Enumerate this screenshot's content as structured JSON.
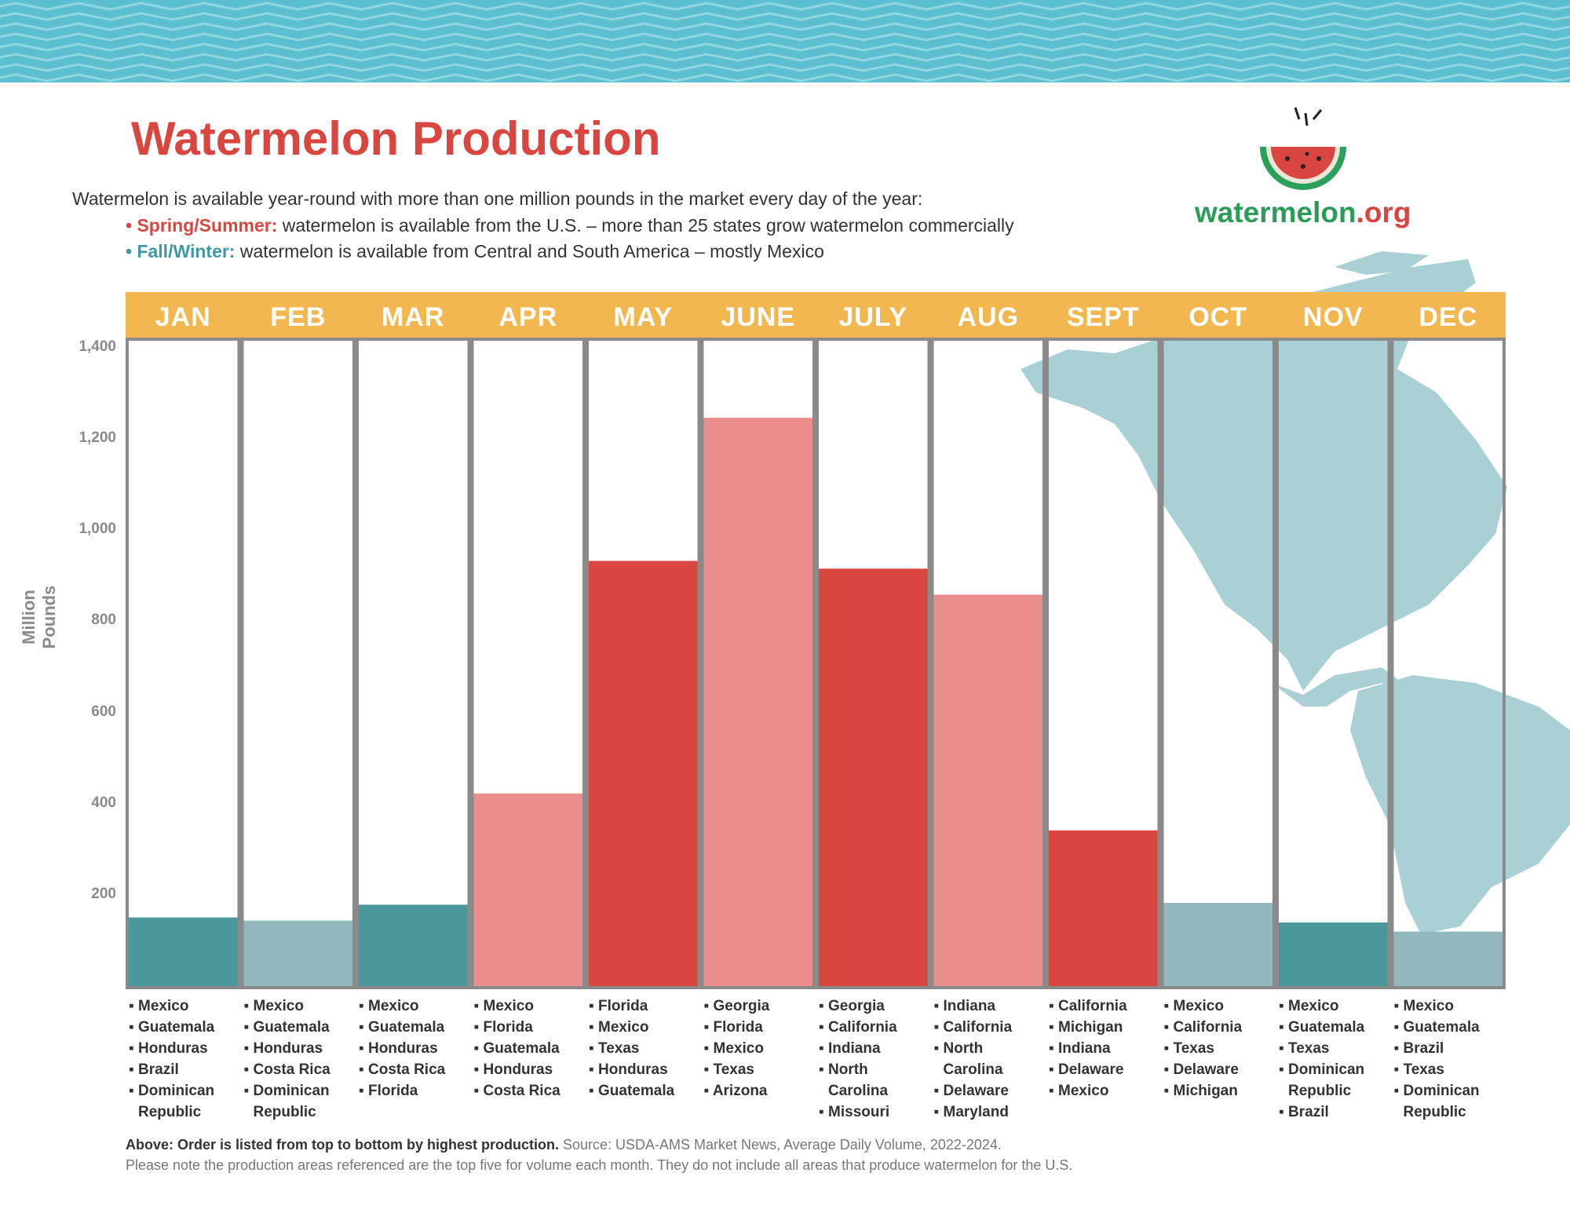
{
  "title": "Watermelon Production",
  "intro": "Watermelon is available year-round with more than one million pounds in the market every day of the year:",
  "bullets": [
    {
      "label": "Spring/Summer:",
      "text": " watermelon is available from the U.S. – more than 25 states grow watermelon commercially",
      "color": "#d9453f"
    },
    {
      "label": "Fall/Winter:",
      "text": " watermelon is available from Central and South America – mostly Mexico",
      "color": "#3d9aa3"
    }
  ],
  "logo": {
    "text_main": "watermelon",
    "text_suffix": ".org"
  },
  "colors": {
    "header": "#f2b84f",
    "dark_teal": "#4a979c",
    "light_teal": "#93b8be",
    "red": "#d9453f",
    "pink": "#e98e8b",
    "border": "#8a8a8a",
    "map": "#a9d0d4"
  },
  "chart_data": {
    "type": "bar",
    "ylabel": "Million Pounds",
    "ylim": [
      0,
      1400
    ],
    "yticks": [
      "200",
      "400",
      "600",
      "800",
      "1,000",
      "1,200",
      "1,400"
    ],
    "ytick_values": [
      200,
      400,
      600,
      800,
      1000,
      1200,
      1400
    ],
    "categories": [
      "JAN",
      "FEB",
      "MAR",
      "APR",
      "MAY",
      "JUNE",
      "JULY",
      "AUG",
      "SEPT",
      "OCT",
      "NOV",
      "DEC"
    ],
    "values": [
      154,
      147,
      182,
      426,
      936,
      1250,
      919,
      862,
      345,
      186,
      143,
      123
    ],
    "bar_colors": [
      "dark_teal",
      "light_teal",
      "dark_teal",
      "pink",
      "red",
      "pink",
      "red",
      "pink",
      "red",
      "light_teal",
      "dark_teal",
      "light_teal"
    ],
    "top_sources": [
      [
        "Mexico",
        "Guatemala",
        "Honduras",
        "Brazil",
        "Dominican Republic"
      ],
      [
        "Mexico",
        "Guatemala",
        "Honduras",
        "Costa Rica",
        "Dominican Republic"
      ],
      [
        "Mexico",
        "Guatemala",
        "Honduras",
        "Costa Rica",
        "Florida"
      ],
      [
        "Mexico",
        "Florida",
        "Guatemala",
        "Honduras",
        "Costa Rica"
      ],
      [
        "Florida",
        "Mexico",
        "Texas",
        "Honduras",
        "Guatemala"
      ],
      [
        "Georgia",
        "Florida",
        "Mexico",
        "Texas",
        "Arizona"
      ],
      [
        "Georgia",
        "California",
        "Indiana",
        "North Carolina",
        "Missouri"
      ],
      [
        "Indiana",
        "California",
        "North Carolina",
        "Delaware",
        "Maryland"
      ],
      [
        "California",
        "Michigan",
        "Indiana",
        "Delaware",
        "Mexico"
      ],
      [
        "Mexico",
        "California",
        "Texas",
        "Delaware",
        "Michigan"
      ],
      [
        "Mexico",
        "Guatemala",
        "Texas",
        "Dominican Republic",
        "Brazil"
      ],
      [
        "Mexico",
        "Guatemala",
        "Brazil",
        "Texas",
        "Dominican Republic"
      ]
    ]
  },
  "footer": {
    "bold": "Above: Order is listed from top to bottom by highest production.",
    "source": " Source: USDA-AMS Market News, Average Daily Volume, 2022-2024.",
    "note": "Please note the production areas referenced are the top five for volume each month. They do not include all areas that produce watermelon for the U.S."
  }
}
